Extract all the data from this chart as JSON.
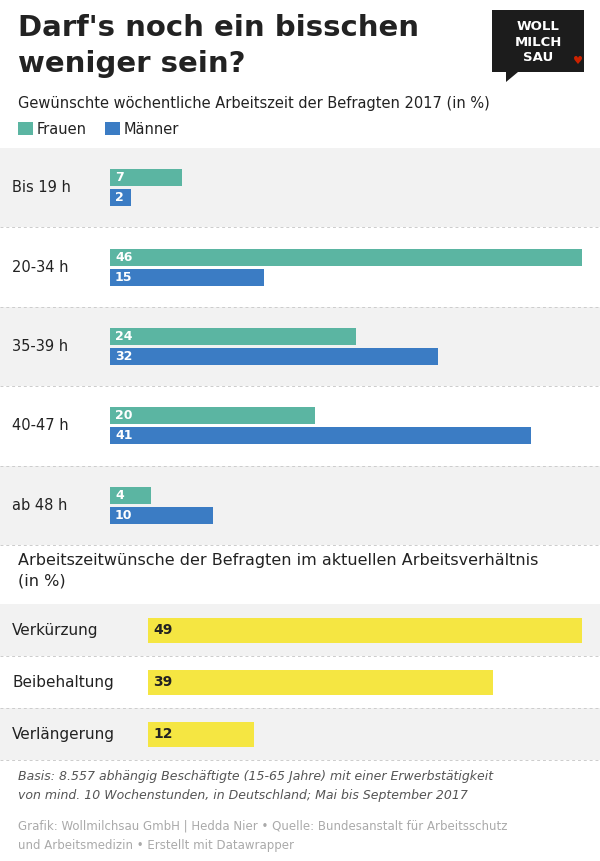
{
  "title_line1": "Darf's noch ein bisschen",
  "title_line2": "weniger sein?",
  "subtitle": "Gewünschte wöchentliche Arbeitszeit der Befragten 2017 (in %)",
  "legend_frauen": "Frauen",
  "legend_maenner": "Männer",
  "bar_categories": [
    "Bis 19 h",
    "20-34 h",
    "35-39 h",
    "40-47 h",
    "ab 48 h"
  ],
  "frauen_values": [
    7,
    46,
    24,
    20,
    4
  ],
  "maenner_values": [
    2,
    15,
    32,
    41,
    10
  ],
  "frauen_color": "#5BB5A2",
  "maenner_color": "#3B7CC4",
  "bar_max": 46,
  "section2_title_line1": "Arbeitszeitwünsche der Befragten im aktuellen Arbeitsverhältnis",
  "section2_title_line2": "(in %)",
  "yellow_categories": [
    "Verkürzung",
    "Beibehaltung",
    "Verlängerung"
  ],
  "yellow_values": [
    49,
    39,
    12
  ],
  "yellow_color": "#F5E642",
  "yellow_max": 49,
  "basis_text": "Basis: 8.557 abhängig Beschäftigte (15-65 Jahre) mit einer Erwerbstätigkeit\nvon mind. 10 Wochenstunden, in Deutschland; Mai bis September 2017",
  "credit_text": "Grafik: Wollmilchsau GmbH | Hedda Nier • Quelle: Bundesanstalt für Arbeitsschutz\nund Arbeitsmedizin • Erstellt mit Datawrapper",
  "bg_odd": "#f2f2f2",
  "bg_even": "#ffffff",
  "text_color": "#222222",
  "gray_text": "#aaaaaa",
  "white": "#ffffff"
}
